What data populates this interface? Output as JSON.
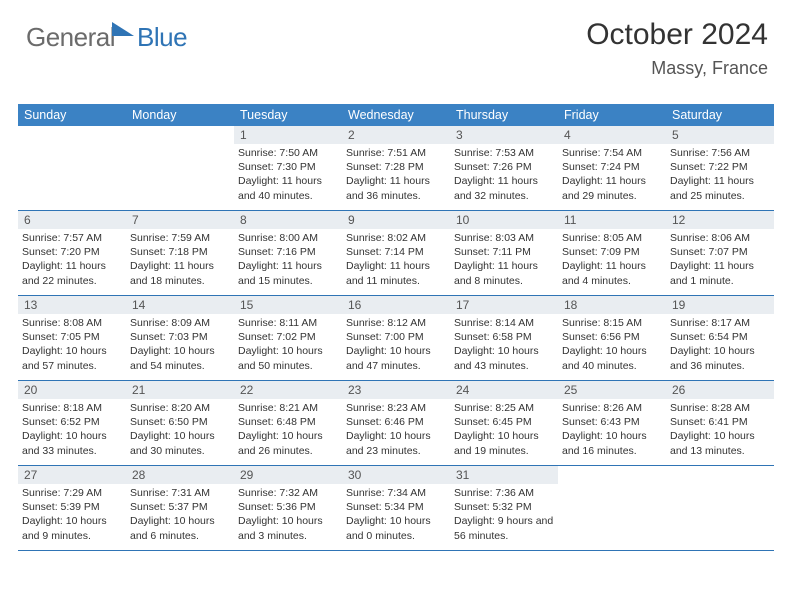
{
  "brand": {
    "part1": "General",
    "part2": "Blue"
  },
  "title": "October 2024",
  "location": "Massy, France",
  "colors": {
    "header_bg": "#3b82c4",
    "header_text": "#ffffff",
    "daynum_bg": "#e9edf1",
    "rule": "#2f74b5",
    "body_text": "#333333",
    "brand_gray": "#6b6b6b",
    "brand_blue": "#2f74b5"
  },
  "font": {
    "family": "Arial",
    "title_pt": 30,
    "location_pt": 18,
    "dayhead_pt": 12.5,
    "cell_pt": 10.5
  },
  "dayNames": [
    "Sunday",
    "Monday",
    "Tuesday",
    "Wednesday",
    "Thursday",
    "Friday",
    "Saturday"
  ],
  "weeks": [
    [
      {
        "blank": true
      },
      {
        "blank": true
      },
      {
        "n": "1",
        "sunrise": "7:50 AM",
        "sunset": "7:30 PM",
        "daylight": "11 hours and 40 minutes."
      },
      {
        "n": "2",
        "sunrise": "7:51 AM",
        "sunset": "7:28 PM",
        "daylight": "11 hours and 36 minutes."
      },
      {
        "n": "3",
        "sunrise": "7:53 AM",
        "sunset": "7:26 PM",
        "daylight": "11 hours and 32 minutes."
      },
      {
        "n": "4",
        "sunrise": "7:54 AM",
        "sunset": "7:24 PM",
        "daylight": "11 hours and 29 minutes."
      },
      {
        "n": "5",
        "sunrise": "7:56 AM",
        "sunset": "7:22 PM",
        "daylight": "11 hours and 25 minutes."
      }
    ],
    [
      {
        "n": "6",
        "sunrise": "7:57 AM",
        "sunset": "7:20 PM",
        "daylight": "11 hours and 22 minutes."
      },
      {
        "n": "7",
        "sunrise": "7:59 AM",
        "sunset": "7:18 PM",
        "daylight": "11 hours and 18 minutes."
      },
      {
        "n": "8",
        "sunrise": "8:00 AM",
        "sunset": "7:16 PM",
        "daylight": "11 hours and 15 minutes."
      },
      {
        "n": "9",
        "sunrise": "8:02 AM",
        "sunset": "7:14 PM",
        "daylight": "11 hours and 11 minutes."
      },
      {
        "n": "10",
        "sunrise": "8:03 AM",
        "sunset": "7:11 PM",
        "daylight": "11 hours and 8 minutes."
      },
      {
        "n": "11",
        "sunrise": "8:05 AM",
        "sunset": "7:09 PM",
        "daylight": "11 hours and 4 minutes."
      },
      {
        "n": "12",
        "sunrise": "8:06 AM",
        "sunset": "7:07 PM",
        "daylight": "11 hours and 1 minute."
      }
    ],
    [
      {
        "n": "13",
        "sunrise": "8:08 AM",
        "sunset": "7:05 PM",
        "daylight": "10 hours and 57 minutes."
      },
      {
        "n": "14",
        "sunrise": "8:09 AM",
        "sunset": "7:03 PM",
        "daylight": "10 hours and 54 minutes."
      },
      {
        "n": "15",
        "sunrise": "8:11 AM",
        "sunset": "7:02 PM",
        "daylight": "10 hours and 50 minutes."
      },
      {
        "n": "16",
        "sunrise": "8:12 AM",
        "sunset": "7:00 PM",
        "daylight": "10 hours and 47 minutes."
      },
      {
        "n": "17",
        "sunrise": "8:14 AM",
        "sunset": "6:58 PM",
        "daylight": "10 hours and 43 minutes."
      },
      {
        "n": "18",
        "sunrise": "8:15 AM",
        "sunset": "6:56 PM",
        "daylight": "10 hours and 40 minutes."
      },
      {
        "n": "19",
        "sunrise": "8:17 AM",
        "sunset": "6:54 PM",
        "daylight": "10 hours and 36 minutes."
      }
    ],
    [
      {
        "n": "20",
        "sunrise": "8:18 AM",
        "sunset": "6:52 PM",
        "daylight": "10 hours and 33 minutes."
      },
      {
        "n": "21",
        "sunrise": "8:20 AM",
        "sunset": "6:50 PM",
        "daylight": "10 hours and 30 minutes."
      },
      {
        "n": "22",
        "sunrise": "8:21 AM",
        "sunset": "6:48 PM",
        "daylight": "10 hours and 26 minutes."
      },
      {
        "n": "23",
        "sunrise": "8:23 AM",
        "sunset": "6:46 PM",
        "daylight": "10 hours and 23 minutes."
      },
      {
        "n": "24",
        "sunrise": "8:25 AM",
        "sunset": "6:45 PM",
        "daylight": "10 hours and 19 minutes."
      },
      {
        "n": "25",
        "sunrise": "8:26 AM",
        "sunset": "6:43 PM",
        "daylight": "10 hours and 16 minutes."
      },
      {
        "n": "26",
        "sunrise": "8:28 AM",
        "sunset": "6:41 PM",
        "daylight": "10 hours and 13 minutes."
      }
    ],
    [
      {
        "n": "27",
        "sunrise": "7:29 AM",
        "sunset": "5:39 PM",
        "daylight": "10 hours and 9 minutes."
      },
      {
        "n": "28",
        "sunrise": "7:31 AM",
        "sunset": "5:37 PM",
        "daylight": "10 hours and 6 minutes."
      },
      {
        "n": "29",
        "sunrise": "7:32 AM",
        "sunset": "5:36 PM",
        "daylight": "10 hours and 3 minutes."
      },
      {
        "n": "30",
        "sunrise": "7:34 AM",
        "sunset": "5:34 PM",
        "daylight": "10 hours and 0 minutes."
      },
      {
        "n": "31",
        "sunrise": "7:36 AM",
        "sunset": "5:32 PM",
        "daylight": "9 hours and 56 minutes."
      },
      {
        "blank": true
      },
      {
        "blank": true
      }
    ]
  ],
  "labels": {
    "sunrise": "Sunrise:",
    "sunset": "Sunset:",
    "daylight": "Daylight:"
  }
}
